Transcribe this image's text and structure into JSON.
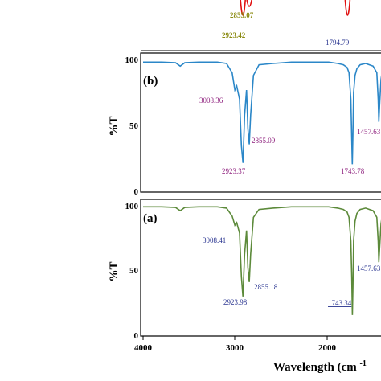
{
  "chart_data": [
    {
      "type": "line",
      "panel_label": "",
      "ylabel": "",
      "xlim": [
        4000,
        1400
      ],
      "ylim": [
        0,
        100
      ],
      "visible_fraction": 0.3,
      "color": "#e01010",
      "peaks": [
        {
          "x": 2923.42,
          "label": "2923.42"
        },
        {
          "x": 2855.07,
          "label": "2855.07"
        },
        {
          "x": 1794.79,
          "label": "1794.79"
        }
      ]
    },
    {
      "type": "line",
      "panel_label": "(b)",
      "ylabel": "%T",
      "xlim": [
        4000,
        1400
      ],
      "ylim": [
        0,
        100
      ],
      "yticks": [
        0,
        50,
        100
      ],
      "color": "#2b87c8",
      "label_color": "#8b1a7a",
      "baseline": 98,
      "series": {
        "x": [
          4000,
          3800,
          3650,
          3600,
          3550,
          3400,
          3200,
          3100,
          3040,
          3010,
          2990,
          2960,
          2940,
          2923,
          2905,
          2885,
          2870,
          2855,
          2840,
          2810,
          2750,
          2600,
          2400,
          2200,
          2000,
          1900,
          1840,
          1800,
          1780,
          1760,
          1750,
          1744,
          1738,
          1730,
          1715,
          1695,
          1660,
          1600,
          1520,
          1480,
          1465,
          1458,
          1450,
          1435,
          1420,
          1400
        ],
        "y": [
          98,
          98,
          97.5,
          95,
          97.5,
          98,
          98,
          97,
          90,
          77,
          80,
          70,
          35,
          22,
          58,
          77,
          48,
          36,
          58,
          88,
          96,
          97,
          98,
          98,
          98,
          97,
          96,
          94,
          90,
          70,
          40,
          21,
          42,
          75,
          88,
          93,
          96,
          97,
          95,
          90,
          70,
          53,
          65,
          85,
          92,
          95
        ]
      },
      "annotations": [
        {
          "x": 3008.36,
          "y": 77,
          "label": "3008.36"
        },
        {
          "x": 2855.09,
          "y": 36,
          "label": "2855.09"
        },
        {
          "x": 2923.37,
          "y": 22,
          "label": "2923.37"
        },
        {
          "x": 1743.78,
          "y": 21,
          "label": "1743.78"
        },
        {
          "x": 1457.63,
          "y": 53,
          "label": "1457.63"
        }
      ]
    },
    {
      "type": "line",
      "panel_label": "(a)",
      "ylabel": "%T",
      "xlim": [
        4000,
        1400
      ],
      "ylim": [
        0,
        100
      ],
      "yticks": [
        0,
        50,
        100
      ],
      "xticks": [
        4000,
        3000,
        2000
      ],
      "xlabel": "Wavelength (cm",
      "xlabel_sup": "-1",
      "color": "#5c8a3a",
      "label_color": "#2a3590",
      "baseline": 98,
      "series": {
        "x": [
          4000,
          3800,
          3650,
          3600,
          3550,
          3400,
          3200,
          3100,
          3040,
          3010,
          2990,
          2960,
          2940,
          2924,
          2905,
          2885,
          2870,
          2855,
          2840,
          2810,
          2750,
          2600,
          2400,
          2200,
          2000,
          1900,
          1840,
          1800,
          1780,
          1760,
          1750,
          1743,
          1737,
          1730,
          1715,
          1695,
          1660,
          1600,
          1520,
          1480,
          1465,
          1458,
          1450,
          1435,
          1420,
          1400
        ],
        "y": [
          98,
          98,
          97.5,
          95,
          97.5,
          98,
          98,
          97,
          91,
          84,
          86,
          78,
          45,
          30,
          62,
          80,
          52,
          41,
          62,
          90,
          96,
          97,
          98,
          98,
          98,
          97,
          96,
          94,
          90,
          72,
          45,
          16,
          38,
          72,
          87,
          93,
          96,
          97,
          95,
          90,
          72,
          56,
          66,
          85,
          92,
          95
        ]
      },
      "annotations": [
        {
          "x": 3008.41,
          "y": 84,
          "label": "3008.41"
        },
        {
          "x": 2855.18,
          "y": 41,
          "label": "2855.18"
        },
        {
          "x": 2923.98,
          "y": 30,
          "label": "2923.98"
        },
        {
          "x": 1743.34,
          "y": 16,
          "label": "1743.34"
        },
        {
          "x": 1457.63,
          "y": 56,
          "label": "1457.63"
        }
      ]
    }
  ]
}
